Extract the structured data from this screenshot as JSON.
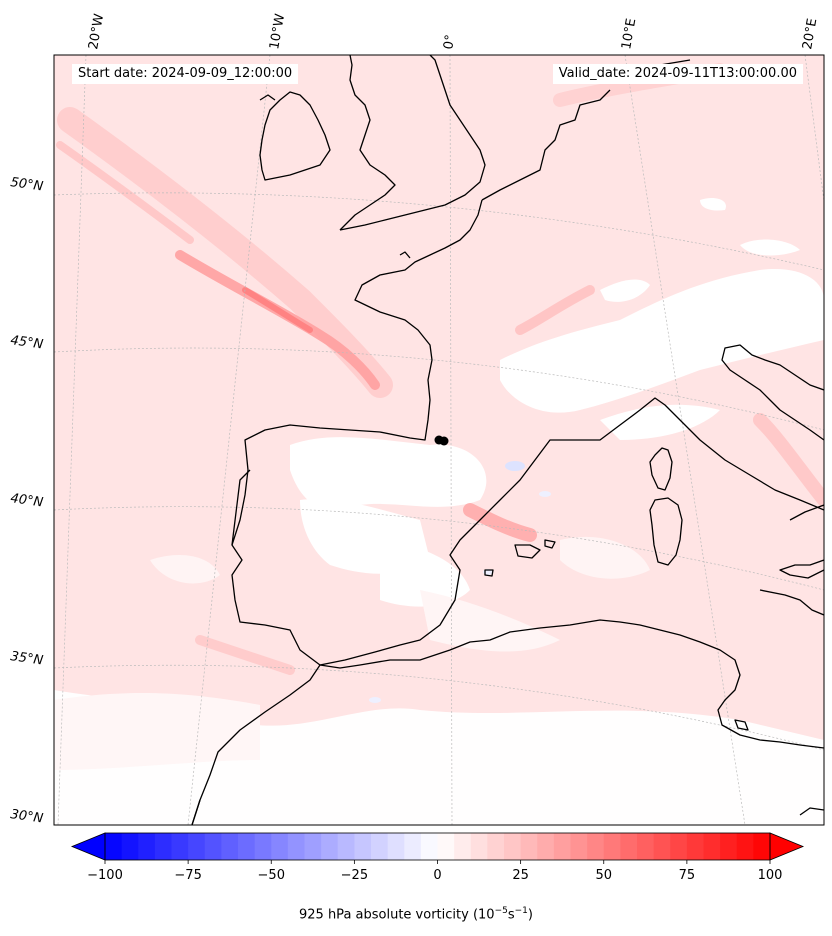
{
  "header": {
    "start_date": "Start date: 2024-09-09_12:00:00",
    "valid_date": "Valid_date: 2024-09-11T13:00:00.00"
  },
  "map": {
    "lon_labels": [
      "20°W",
      "10°W",
      "0°",
      "10°E",
      "20°E"
    ],
    "lat_labels": [
      "50°N",
      "45°N",
      "40°N",
      "35°N",
      "30°N"
    ],
    "gridlines": true,
    "marker": {
      "lon": -0.5,
      "lat": 42.4,
      "color": "#000000"
    }
  },
  "colorbar": {
    "ticks": [
      "−100",
      "−75",
      "−50",
      "−25",
      "0",
      "25",
      "50",
      "75",
      "100"
    ],
    "min": -100,
    "max": 100,
    "n_levels": 41,
    "cmap": "bwr",
    "extend": "both",
    "label_text": "925 hPa absolute vorticity (10",
    "label_exp1": "−5",
    "label_mid": "s",
    "label_exp2": "−1",
    "label_end": ")"
  },
  "colors": {
    "coastline": "#000000",
    "field_base": "#ffe6e6",
    "negative": "#0000ff",
    "positive": "#ff0000"
  }
}
